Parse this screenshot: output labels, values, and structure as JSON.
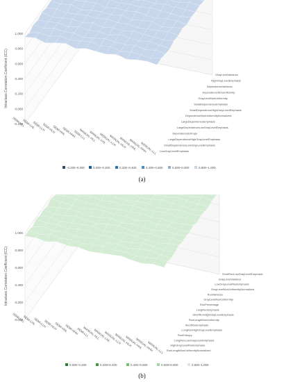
{
  "panels": [
    {
      "label": "(a)",
      "chart_data": {
        "type": "surface3d",
        "zlabel": "Intraclass Correlation Coefficient (ICC)",
        "z_ticks": [
          "-0.200",
          "0.000",
          "0.200",
          "0.400",
          "0.600",
          "0.800",
          "1.000"
        ],
        "z_range": [
          -0.2,
          1.0
        ],
        "x_categories": [
          "SEMI-HLL",
          "SEMI-LHL",
          "SEMI-LLH",
          "SEMI-HLH",
          "SEMI-HHL",
          "SEMI-HHH",
          "SEMI-LLL",
          "MANUAL-HLL",
          "MANUAL-LHL",
          "MANUAL-LLH",
          "MANUAL-HLH",
          "MANUAL-HHL",
          "MANUAL-HHH",
          "MANUAL-LLL"
        ],
        "y_categories": [
          "LowGrayLevelEmphasis",
          "SmallDependenceLowGrayLevelEmphasis",
          "LargeDependenceHighGrayLevelEmphasis",
          "DependenceEntropy",
          "LargeDependenceLowGrayLevelEmphasis",
          "LargeDependenceEmphasis",
          "DependenceNonUniformityNormalized",
          "SmallDependenceHighGrayLevelEmphasis",
          "SmallDependenceEmphasis",
          "GrayLevelNonUniformity",
          "DependenceNonUniformity",
          "DependenceVariance",
          "HighGrayLevelEmphasis",
          "GrayLevelVariance"
        ],
        "legend": [
          {
            "range": "-0.200–0.000",
            "color": "#2a4a6b"
          },
          {
            "range": "0.000–0.200",
            "color": "#1f5e8e"
          },
          {
            "range": "0.200–0.400",
            "color": "#2f76ad"
          },
          {
            "range": "0.400–0.600",
            "color": "#4f8dc1"
          },
          {
            "range": "0.600–0.800",
            "color": "#8fb0d8"
          },
          {
            "range": "0.800–1.000",
            "color": "#c8d6ec"
          }
        ],
        "values": [
          [
            0.95,
            0.97,
            0.93,
            0.96,
            0.98,
            0.94,
            0.97,
            0.96,
            0.95,
            0.98,
            0.94,
            0.96,
            0.97,
            0.95
          ],
          [
            0.93,
            0.96,
            0.94,
            0.97,
            0.95,
            0.96,
            0.98,
            0.95,
            0.97,
            0.94,
            0.96,
            0.95,
            0.93,
            0.96
          ],
          [
            0.96,
            0.94,
            0.97,
            0.95,
            0.96,
            0.93,
            0.95,
            0.97,
            0.96,
            0.95,
            0.97,
            0.94,
            0.96,
            0.94
          ],
          [
            0.94,
            0.95,
            0.96,
            0.94,
            0.97,
            0.95,
            0.96,
            0.94,
            0.98,
            0.96,
            0.95,
            0.97,
            0.95,
            0.93
          ],
          [
            0.97,
            0.93,
            0.95,
            0.96,
            0.94,
            0.97,
            0.94,
            0.96,
            0.95,
            0.97,
            0.96,
            0.95,
            0.94,
            0.96
          ],
          [
            0.95,
            0.96,
            0.94,
            0.95,
            0.96,
            0.95,
            0.97,
            0.95,
            0.96,
            0.94,
            0.95,
            0.96,
            0.97,
            0.95
          ],
          [
            0.96,
            0.95,
            0.97,
            0.93,
            0.95,
            0.96,
            0.95,
            0.97,
            0.94,
            0.96,
            0.97,
            0.93,
            0.95,
            0.97
          ],
          [
            0.94,
            0.97,
            0.95,
            0.96,
            0.97,
            0.94,
            0.96,
            0.95,
            0.97,
            0.95,
            0.94,
            0.96,
            0.96,
            0.94
          ],
          [
            0.95,
            0.94,
            0.96,
            0.97,
            0.95,
            0.96,
            0.95,
            0.96,
            0.95,
            0.97,
            0.96,
            0.95,
            0.94,
            0.96
          ],
          [
            0.97,
            0.96,
            0.94,
            0.95,
            0.96,
            0.95,
            0.97,
            0.94,
            0.96,
            0.95,
            0.97,
            0.96,
            0.95,
            0.95
          ],
          [
            0.95,
            0.95,
            0.96,
            0.94,
            0.97,
            0.96,
            0.94,
            0.96,
            0.95,
            0.96,
            0.95,
            0.94,
            0.97,
            0.96
          ],
          [
            0.96,
            0.97,
            0.95,
            0.96,
            0.94,
            0.97,
            0.95,
            0.95,
            0.97,
            0.94,
            0.96,
            0.97,
            0.95,
            0.94
          ],
          [
            0.94,
            0.95,
            0.97,
            0.95,
            0.96,
            0.94,
            0.96,
            0.97,
            0.95,
            0.96,
            0.95,
            0.96,
            0.94,
            0.97
          ],
          [
            0.96,
            0.94,
            0.95,
            0.97,
            0.95,
            0.96,
            0.97,
            0.95,
            0.96,
            0.97,
            0.94,
            0.95,
            0.96,
            0.95
          ]
        ]
      }
    },
    {
      "label": "(b)",
      "chart_data": {
        "type": "surface3d",
        "zlabel": "Intraclass Correlation Coefficient (ICC)",
        "z_ticks": [
          "0.000",
          "0.200",
          "0.400",
          "0.600",
          "0.800",
          "1.000"
        ],
        "z_range": [
          0.0,
          1.0
        ],
        "x_categories": [
          "SEMI-HLL",
          "SEMI-LHL",
          "SEMI-LLH",
          "SEMI-HLH",
          "SEMI-HHL",
          "SEMI-HHH",
          "SEMI-LLL",
          "MANUAL-HLL",
          "MANUAL-LHL",
          "MANUAL-LLH",
          "MANUAL-HLH",
          "MANUAL-HHL",
          "MANUAL-HHH",
          "MANUAL-LLL"
        ],
        "y_categories": [
          "RunLengthNonUniformityNormalized",
          "HighGrayLevelRunEmphasis",
          "LongRunLowGrayLevelEmphasis",
          "RunEntropy",
          "LongRunHighGrayLevelEmphasis",
          "ShortRunEmphasis",
          "RunLengthNonUniformity",
          "ShortRunHighGrayLevelEmphasis",
          "LongRunEmphasis",
          "RunPercentage",
          "GrayLevelNonUniformity",
          "RunVariance",
          "GrayLevelNonUniformityNormalized",
          "LowGrayLevelRunEmphasis",
          "GrayLevelVariance",
          "ShortRunLowGrayLevelEmphasis"
        ],
        "legend": [
          {
            "range": "0.000–0.200",
            "color": "#2e7d2e"
          },
          {
            "range": "0.200–0.400",
            "color": "#3f9a3f"
          },
          {
            "range": "0.400–0.600",
            "color": "#6fbf6f"
          },
          {
            "range": "0.600–0.800",
            "color": "#a4d9a4"
          },
          {
            "range": "0.800–1.000",
            "color": "#d4ecd4"
          }
        ],
        "values": [
          [
            0.96,
            0.97,
            0.95,
            0.98,
            0.96,
            0.97,
            0.95,
            0.96,
            0.97,
            0.98,
            0.96,
            0.95,
            0.97,
            0.96
          ],
          [
            0.97,
            0.95,
            0.98,
            0.96,
            0.97,
            0.95,
            0.97,
            0.98,
            0.96,
            0.97,
            0.95,
            0.96,
            0.98,
            0.97
          ],
          [
            0.95,
            0.98,
            0.96,
            0.97,
            0.95,
            0.96,
            0.98,
            0.96,
            0.97,
            0.95,
            0.97,
            0.98,
            0.96,
            0.95
          ],
          [
            0.98,
            0.96,
            0.97,
            0.95,
            0.98,
            0.97,
            0.96,
            0.97,
            0.95,
            0.96,
            0.98,
            0.97,
            0.95,
            0.96
          ],
          [
            0.96,
            0.97,
            0.95,
            0.96,
            0.97,
            0.98,
            0.95,
            0.96,
            0.98,
            0.97,
            0.96,
            0.95,
            0.97,
            0.98
          ],
          [
            0.97,
            0.95,
            0.96,
            0.98,
            0.96,
            0.95,
            0.97,
            0.98,
            0.96,
            0.95,
            0.97,
            0.96,
            0.98,
            0.96
          ],
          [
            0.95,
            0.96,
            0.98,
            0.97,
            0.95,
            0.96,
            0.98,
            0.95,
            0.97,
            0.96,
            0.95,
            0.98,
            0.96,
            0.97
          ],
          [
            0.98,
            0.97,
            0.96,
            0.95,
            0.97,
            0.98,
            0.96,
            0.97,
            0.95,
            0.98,
            0.96,
            0.97,
            0.95,
            0.96
          ],
          [
            0.96,
            0.98,
            0.97,
            0.96,
            0.96,
            0.95,
            0.97,
            0.96,
            0.98,
            0.96,
            0.97,
            0.95,
            0.96,
            0.98
          ],
          [
            0.97,
            0.96,
            0.95,
            0.98,
            0.95,
            0.97,
            0.96,
            0.98,
            0.96,
            0.97,
            0.98,
            0.96,
            0.97,
            0.95
          ],
          [
            0.95,
            0.97,
            0.98,
            0.96,
            0.98,
            0.96,
            0.95,
            0.97,
            0.97,
            0.95,
            0.96,
            0.98,
            0.96,
            0.97
          ],
          [
            0.98,
            0.95,
            0.96,
            0.97,
            0.96,
            0.97,
            0.98,
            0.95,
            0.96,
            0.98,
            0.97,
            0.96,
            0.95,
            0.96
          ],
          [
            0.96,
            0.96,
            0.97,
            0.95,
            0.97,
            0.96,
            0.96,
            0.97,
            0.95,
            0.96,
            0.98,
            0.97,
            0.96,
            0.95
          ],
          [
            0.97,
            0.98,
            0.95,
            0.96,
            0.95,
            0.98,
            0.97,
            0.96,
            0.98,
            0.97,
            0.95,
            0.96,
            0.98,
            0.97
          ],
          [
            0.95,
            0.96,
            0.97,
            0.98,
            0.96,
            0.95,
            0.96,
            0.98,
            0.97,
            0.95,
            0.96,
            0.97,
            0.97,
            0.96
          ],
          [
            0.96,
            0.97,
            0.96,
            0.95,
            0.97,
            0.96,
            0.98,
            0.95,
            0.96,
            0.97,
            0.98,
            0.95,
            0.96,
            0.98
          ]
        ]
      }
    }
  ]
}
